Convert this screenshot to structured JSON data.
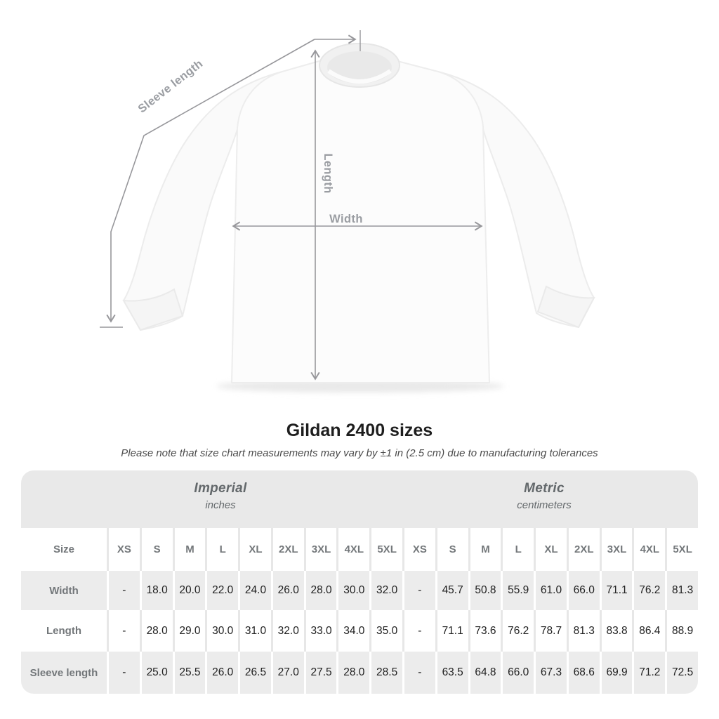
{
  "title": "Gildan 2400 sizes",
  "subtitle": "Please note that size chart measurements may vary by ±1 in (2.5 cm) due to manufacturing tolerances",
  "diagram": {
    "labels": {
      "sleeve_length": "Sleeve length",
      "length": "Length",
      "width": "Width"
    }
  },
  "table": {
    "groups": [
      {
        "label": "Imperial",
        "sublabel": "inches"
      },
      {
        "label": "Metric",
        "sublabel": "centimeters"
      }
    ],
    "size_header": "Size",
    "sizes": [
      "XS",
      "S",
      "M",
      "L",
      "XL",
      "2XL",
      "3XL",
      "4XL",
      "5XL"
    ],
    "rows": [
      {
        "label": "Width",
        "imperial": [
          "-",
          "18.0",
          "20.0",
          "22.0",
          "24.0",
          "26.0",
          "28.0",
          "30.0",
          "32.0"
        ],
        "metric": [
          "-",
          "45.7",
          "50.8",
          "55.9",
          "61.0",
          "66.0",
          "71.1",
          "76.2",
          "81.3"
        ]
      },
      {
        "label": "Length",
        "imperial": [
          "-",
          "28.0",
          "29.0",
          "30.0",
          "31.0",
          "32.0",
          "33.0",
          "34.0",
          "35.0"
        ],
        "metric": [
          "-",
          "71.1",
          "73.6",
          "76.2",
          "78.7",
          "81.3",
          "83.8",
          "86.4",
          "88.9"
        ]
      },
      {
        "label": "Sleeve length",
        "imperial": [
          "-",
          "25.0",
          "25.5",
          "26.0",
          "26.5",
          "27.0",
          "27.5",
          "28.0",
          "28.5"
        ],
        "metric": [
          "-",
          "63.5",
          "64.8",
          "66.0",
          "67.3",
          "68.6",
          "69.9",
          "71.2",
          "72.5"
        ]
      }
    ]
  },
  "colors": {
    "band_bg": "#e9e9e9",
    "row_alt_bg": "#ececec",
    "separator_light": "#e7e7e7",
    "header_text": "#73777a",
    "group_text": "#63686b",
    "value_text": "#202020",
    "title_text": "#1e1e1e",
    "subtitle_text": "#4b4b4b",
    "line_color": "#97979b",
    "diagram_label": "#9a9da2"
  }
}
